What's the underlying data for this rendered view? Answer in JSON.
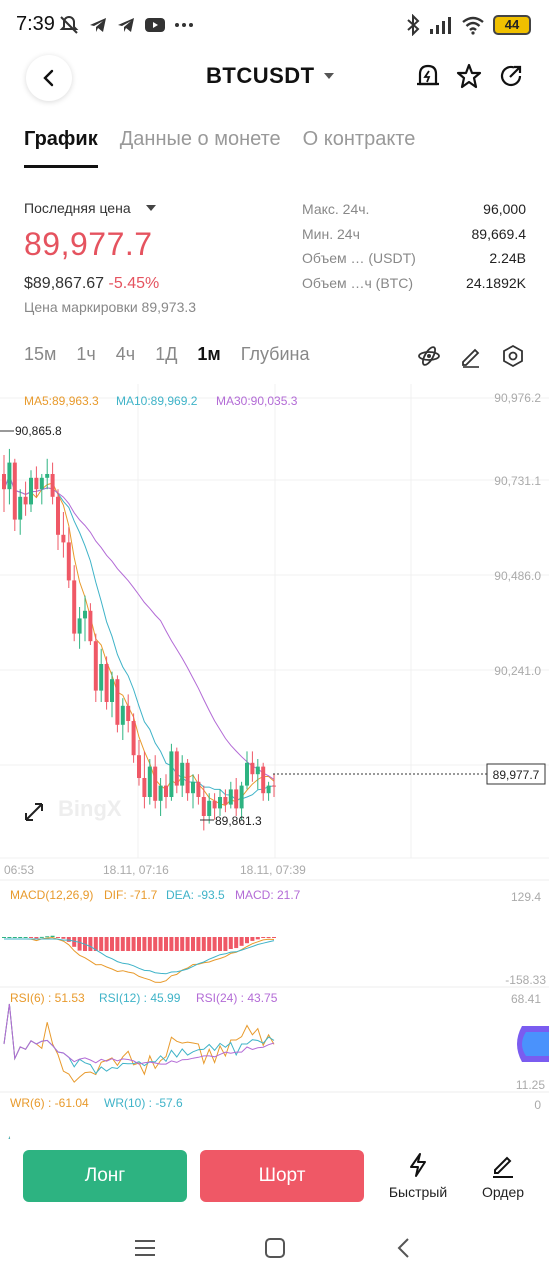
{
  "status_bar": {
    "time": "7:39",
    "battery": "44"
  },
  "header": {
    "symbol": "BTCUSDT"
  },
  "tabs": [
    {
      "label": "График",
      "active": true
    },
    {
      "label": "Данные о монете",
      "active": false
    },
    {
      "label": "О контракте",
      "active": false
    }
  ],
  "price": {
    "last_label": "Последняя цена",
    "last": "89,977.7",
    "usd": "$89,867.67",
    "change": "-5.45%",
    "mark": "Цена маркировки 89,973.3"
  },
  "stats": [
    {
      "label": "Макс. 24ч.",
      "value": "96,000"
    },
    {
      "label": "Мин. 24ч",
      "value": "89,669.4"
    },
    {
      "label": "Объем … (USDT)",
      "value": "2.24B"
    },
    {
      "label": "Объем …ч (BTC)",
      "value": "24.1892K"
    }
  ],
  "timeframes": [
    "15м",
    "1ч",
    "4ч",
    "1Д",
    "1м",
    "Глубина"
  ],
  "active_timeframe": "1м",
  "ma_legend": {
    "ma5": "MA5:89,963.3",
    "ma10": "MA10:89,969.2",
    "ma30": "MA30:90,035.3"
  },
  "price_axis": [
    "90,976.2",
    "90,731.1",
    "90,486.0",
    "90,241.0"
  ],
  "current_price_tag": "89,977.7",
  "high_marker": "90,865.8",
  "low_marker": "89,861.3",
  "time_axis": [
    "06:53",
    "18.11, 07:16",
    "18.11, 07:39"
  ],
  "watermark": "BingX",
  "macd": {
    "legend": "MACD(12,26,9)",
    "dif": "DIF: -71.7",
    "dea": "DEA: -93.5",
    "macd": "MACD: 21.7",
    "axis_top": "129.4",
    "axis_bottom": "-158.33"
  },
  "rsi": {
    "rsi6": "RSI(6) : 51.53",
    "rsi12": "RSI(12) : 45.99",
    "rsi24": "RSI(24) : 43.75",
    "axis_top": "68.41",
    "axis_bottom": "11.25"
  },
  "wr": {
    "wr6": "WR(6) : -61.04",
    "wr10": "WR(10) : -57.6",
    "axis_top": "0"
  },
  "actions": {
    "long": "Лонг",
    "short": "Шорт",
    "quick": "Быстрый",
    "order": "Ордер"
  },
  "colors": {
    "up": "#2db381",
    "down": "#ef5866",
    "ma5": "#e89a2c",
    "ma10": "#3fb3c8",
    "ma30": "#b36bd6"
  },
  "chart_data": {
    "type": "candlestick",
    "y_range": [
      89800,
      91000
    ],
    "candles": [
      [
        90800,
        90850,
        90700,
        90760
      ],
      [
        90760,
        90866,
        90720,
        90830
      ],
      [
        90830,
        90840,
        90650,
        90680
      ],
      [
        90680,
        90760,
        90640,
        90740
      ],
      [
        90740,
        90780,
        90690,
        90720
      ],
      [
        90720,
        90810,
        90700,
        90790
      ],
      [
        90790,
        90820,
        90740,
        90760
      ],
      [
        90760,
        90800,
        90720,
        90790
      ],
      [
        90790,
        90840,
        90760,
        90800
      ],
      [
        90800,
        90830,
        90720,
        90740
      ],
      [
        90740,
        90760,
        90600,
        90640
      ],
      [
        90640,
        90700,
        90580,
        90620
      ],
      [
        90620,
        90660,
        90500,
        90520
      ],
      [
        90520,
        90560,
        90360,
        90380
      ],
      [
        90380,
        90450,
        90340,
        90420
      ],
      [
        90420,
        90480,
        90360,
        90440
      ],
      [
        90440,
        90460,
        90350,
        90360
      ],
      [
        90360,
        90380,
        90200,
        90230
      ],
      [
        90230,
        90340,
        90200,
        90300
      ],
      [
        90300,
        90320,
        90180,
        90200
      ],
      [
        90200,
        90280,
        90160,
        90260
      ],
      [
        90260,
        90270,
        90120,
        90140
      ],
      [
        90140,
        90210,
        90100,
        90190
      ],
      [
        90190,
        90220,
        90120,
        90150
      ],
      [
        90150,
        90170,
        90040,
        90060
      ],
      [
        90060,
        90100,
        89980,
        90000
      ],
      [
        90000,
        90070,
        89920,
        89950
      ],
      [
        89950,
        90050,
        89930,
        90030
      ],
      [
        90030,
        90060,
        89920,
        89940
      ],
      [
        89940,
        90000,
        89900,
        89980
      ],
      [
        89980,
        90010,
        89920,
        89950
      ],
      [
        89950,
        90090,
        89940,
        90070
      ],
      [
        90070,
        90080,
        89960,
        89980
      ],
      [
        89980,
        90060,
        89950,
        90040
      ],
      [
        90040,
        90050,
        89940,
        89960
      ],
      [
        89960,
        90010,
        89920,
        89990
      ],
      [
        89990,
        90010,
        89930,
        89950
      ],
      [
        89950,
        89980,
        89862,
        89900
      ],
      [
        89900,
        89960,
        89880,
        89940
      ],
      [
        89940,
        89960,
        89890,
        89920
      ],
      [
        89920,
        89970,
        89900,
        89950
      ],
      [
        89950,
        89970,
        89910,
        89930
      ],
      [
        89930,
        89990,
        89920,
        89970
      ],
      [
        89970,
        90000,
        89900,
        89920
      ],
      [
        89920,
        89990,
        89890,
        89980
      ],
      [
        89980,
        90070,
        89970,
        90040
      ],
      [
        90040,
        90070,
        89990,
        90010
      ],
      [
        90010,
        90050,
        89970,
        90030
      ],
      [
        90030,
        90040,
        89940,
        89960
      ],
      [
        89960,
        89990,
        89940,
        89980
      ],
      [
        89980,
        90010,
        89950,
        89978
      ]
    ]
  }
}
